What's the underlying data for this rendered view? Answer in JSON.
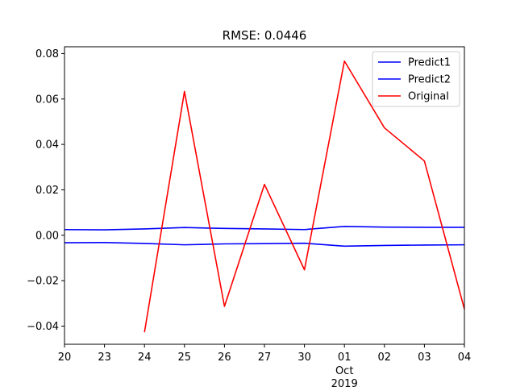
{
  "chart_data": {
    "type": "line",
    "title": "RMSE: 0.0446",
    "x": [
      "20",
      "23",
      "24",
      "25",
      "26",
      "27",
      "30",
      "01",
      "02",
      "03",
      "04"
    ],
    "x_sublabels": [
      {
        "index": 7,
        "lines": [
          "Oct",
          "2019"
        ]
      }
    ],
    "ylim": [
      -0.048,
      0.083
    ],
    "yticks": [
      -0.04,
      -0.02,
      0.0,
      0.02,
      0.04,
      0.06,
      0.08
    ],
    "ytick_labels": [
      "−0.04",
      "−0.02",
      "0.00",
      "0.02",
      "0.04",
      "0.06",
      "0.08"
    ],
    "grid": false,
    "legend_position": "top-right",
    "series": [
      {
        "name": "Predict1",
        "color": "#0000ff",
        "values": [
          0.0025,
          0.0024,
          0.0028,
          0.0034,
          0.003,
          0.0028,
          0.0025,
          0.0039,
          0.0036,
          0.0035,
          0.0035
        ]
      },
      {
        "name": "Predict2",
        "color": "#0000ff",
        "values": [
          -0.0033,
          -0.0032,
          -0.0036,
          -0.0042,
          -0.0038,
          -0.0037,
          -0.0035,
          -0.0048,
          -0.0045,
          -0.0043,
          -0.0042
        ]
      },
      {
        "name": "Original",
        "color": "#ff0000",
        "values": [
          null,
          null,
          -0.0427,
          0.0633,
          -0.0313,
          0.0224,
          -0.0152,
          0.0767,
          0.0473,
          0.0327,
          -0.0325
        ]
      }
    ]
  }
}
